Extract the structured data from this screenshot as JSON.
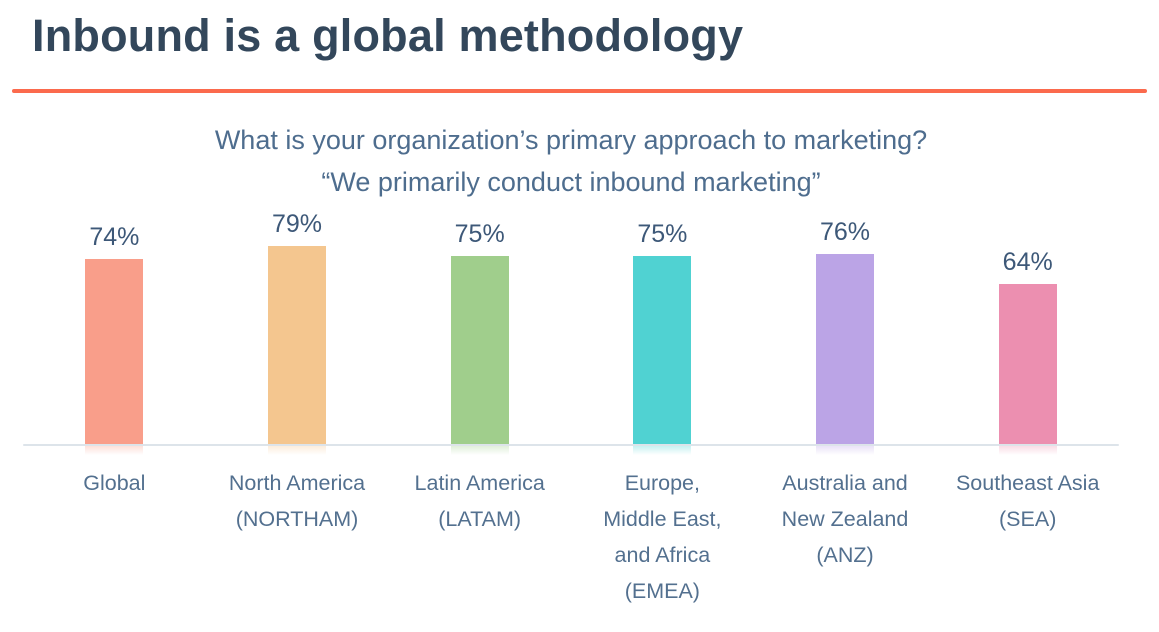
{
  "page": {
    "title": "Inbound is a global methodology"
  },
  "chart_data": {
    "type": "bar",
    "title": "What is your organization’s primary approach to marketing?",
    "subtitle": "“We primarily conduct inbound marketing”",
    "categories": [
      "Global",
      "North America (NORTHAM)",
      "Latin America (LATAM)",
      "Europe, Middle East, and Africa (EMEA)",
      "Australia and New Zealand (ANZ)",
      "Southeast Asia (SEA)"
    ],
    "category_lines": [
      [
        "Global"
      ],
      [
        "North America",
        "(NORTHAM)"
      ],
      [
        "Latin America",
        "(LATAM)"
      ],
      [
        "Europe,",
        "Middle East,",
        "and Africa",
        "(EMEA)"
      ],
      [
        "Australia and",
        "New Zealand",
        "(ANZ)"
      ],
      [
        "Southeast Asia",
        "(SEA)"
      ]
    ],
    "values": [
      74,
      79,
      75,
      75,
      76,
      64
    ],
    "value_labels": [
      "74%",
      "79%",
      "75%",
      "75%",
      "76%",
      "64%"
    ],
    "bar_colors": [
      "#f99e8a",
      "#f4c68f",
      "#a0ce8c",
      "#50d2d2",
      "#bba4e6",
      "#ec8fb0"
    ],
    "ylim": [
      0,
      80
    ],
    "grid": false,
    "legend": false,
    "xlabel": "",
    "ylabel": ""
  },
  "colors": {
    "title_text": "#33475b",
    "accent_line": "#fb6a4d",
    "subtitle_text": "#4e6d8e",
    "value_text": "#3d5878",
    "category_text": "#53708f",
    "baseline": "#dde4ea"
  }
}
